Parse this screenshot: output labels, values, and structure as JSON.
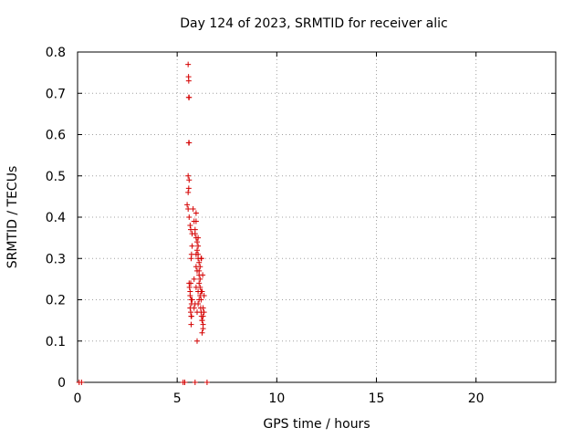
{
  "chart_data": {
    "type": "scatter",
    "title": "Day 124 of 2023, SRMTID for receiver alic",
    "xlabel": "GPS time / hours",
    "ylabel": "SRMTID / TECUs",
    "xlim": [
      0,
      24
    ],
    "ylim": [
      0,
      0.8
    ],
    "xticks": [
      0,
      5,
      10,
      15,
      20
    ],
    "yticks": [
      0,
      0.1,
      0.2,
      0.3,
      0.4,
      0.5,
      0.6,
      0.7,
      0.8
    ],
    "grid": true,
    "marker": "+",
    "color": "#d40000",
    "series": [
      {
        "name": "SRMTID",
        "x": [
          0.08,
          0.2,
          5.3,
          5.38,
          5.9,
          6.5,
          5.55,
          5.57,
          5.58,
          5.6,
          5.58,
          5.6,
          5.58,
          5.55,
          5.6,
          5.58,
          5.55,
          5.5,
          5.55,
          5.6,
          5.65,
          5.68,
          5.75,
          5.72,
          5.7,
          5.6,
          5.62,
          5.65,
          5.65,
          5.7,
          5.72,
          5.65,
          5.68,
          5.7,
          5.72,
          5.75,
          5.68,
          5.7,
          5.8,
          5.85,
          5.9,
          5.95,
          6.0,
          6.05,
          6.0,
          5.95,
          6.05,
          6.1,
          5.95,
          6.0,
          6.1,
          6.15,
          6.1,
          5.95,
          6.05,
          6.15,
          6.2,
          5.9,
          5.85,
          6.0,
          6.05,
          6.1,
          6.15,
          6.2,
          6.18,
          6.2,
          6.22,
          6.25,
          6.3,
          6.3,
          6.25,
          6.35,
          6.3,
          6.25,
          6.3,
          6.35,
          6.28,
          6.22,
          6.0,
          5.95,
          5.75,
          5.9,
          6.05,
          6.15,
          5.85,
          6.1,
          6.2,
          5.95,
          6.05,
          6.25
        ],
        "y": [
          0,
          0,
          0,
          0,
          0,
          0,
          0.77,
          0.74,
          0.73,
          0.69,
          0.69,
          0.58,
          0.58,
          0.5,
          0.49,
          0.47,
          0.46,
          0.43,
          0.42,
          0.4,
          0.38,
          0.37,
          0.36,
          0.31,
          0.3,
          0.24,
          0.23,
          0.22,
          0.21,
          0.2,
          0.19,
          0.18,
          0.17,
          0.16,
          0.16,
          0.2,
          0.24,
          0.14,
          0.42,
          0.39,
          0.37,
          0.35,
          0.34,
          0.33,
          0.32,
          0.31,
          0.3,
          0.29,
          0.28,
          0.27,
          0.26,
          0.25,
          0.24,
          0.23,
          0.22,
          0.21,
          0.2,
          0.19,
          0.18,
          0.17,
          0.19,
          0.2,
          0.23,
          0.22,
          0.18,
          0.17,
          0.16,
          0.15,
          0.14,
          0.13,
          0.12,
          0.17,
          0.16,
          0.15,
          0.18,
          0.21,
          0.26,
          0.3,
          0.1,
          0.41,
          0.33,
          0.36,
          0.35,
          0.28,
          0.25,
          0.27,
          0.3,
          0.39,
          0.31,
          0.22
        ]
      }
    ]
  }
}
